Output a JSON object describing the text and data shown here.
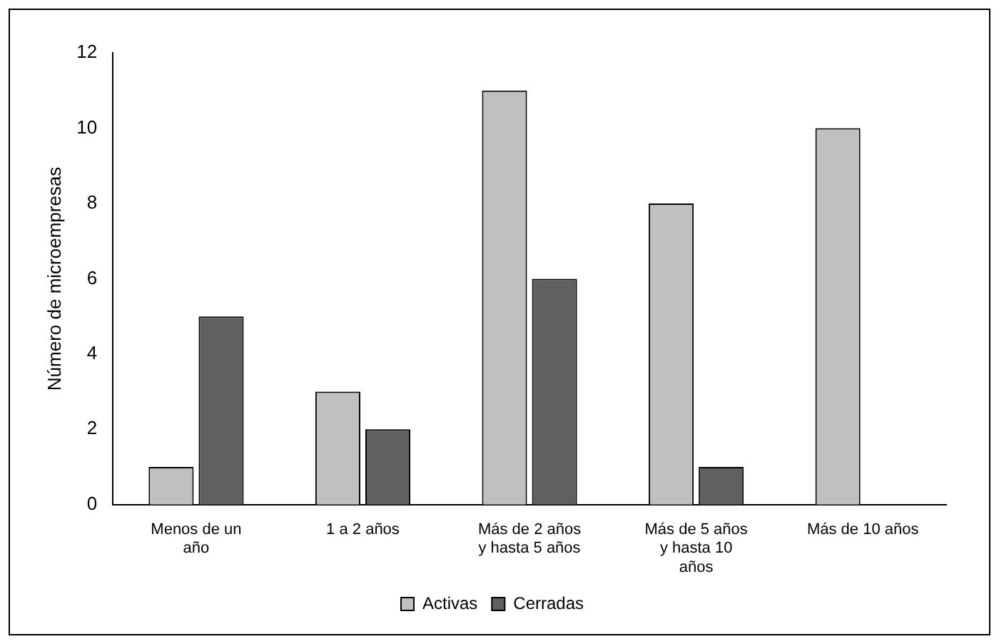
{
  "chart_data": {
    "type": "bar",
    "categories": [
      "Menos de un año",
      "1 a 2 años",
      "Más de 2 años y hasta 5 años",
      "Más de 5 años y hasta 10 años",
      "Más de 10 años"
    ],
    "series": [
      {
        "name": "Activas",
        "color": "#c0c0c0",
        "values": [
          1,
          3,
          11,
          8,
          10
        ]
      },
      {
        "name": "Cerradas",
        "color": "#606060",
        "values": [
          5,
          2,
          6,
          1,
          0
        ]
      }
    ],
    "ylabel": "Número de microempresas",
    "ylim": [
      0,
      12
    ],
    "yticks": [
      0,
      2,
      4,
      6,
      8,
      10,
      12
    ],
    "grid": false,
    "legend": "bottom"
  }
}
